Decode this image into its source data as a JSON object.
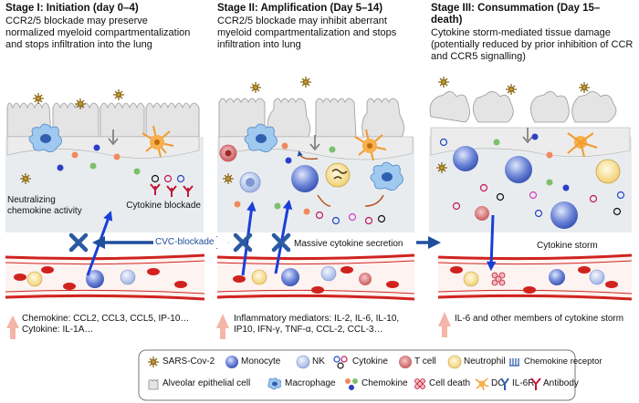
{
  "stages": [
    {
      "title": "Stage I: Initiation (day 0–4)",
      "description": "CCR2/5 blockade may preserve normalized myeloid compartmentalization and stops infiltration into the lung",
      "labels": [
        "Neutralizing chemokine activity",
        "Cytokine blockade"
      ],
      "mediators": "Chemokine: CCL2, CCL3, CCL5, IP-10… Cytokine: IL-1A…"
    },
    {
      "title": "Stage II: Amplification (Day 5–14)",
      "description": "CCR2/5 blockade may inhibit aberrant myeloid compartmentalization and stops infiltration into lung",
      "labels": [
        "Massive cytokine secretion"
      ],
      "mediators": "Inflammatory mediators: IL-2, IL-6, IL-10, IP10, IFN-γ, TNF-α, CCL-2, CCL-3…"
    },
    {
      "title": "Stage III: Consummation (Day 15– death)",
      "description": "Cytokine storm-mediated tissue damage (potentially reduced by prior inhibition of CCR and CCR5 signalling)",
      "labels": [
        "Cytokine storm"
      ],
      "mediators": "IL-6 and other members of cytokine storm"
    }
  ],
  "cvc_label": "CVC-blockade",
  "legend": [
    {
      "icon": "sars-cov-2-icon",
      "label": "SARS-Cov-2"
    },
    {
      "icon": "monocyte-icon",
      "label": "Monocyte"
    },
    {
      "icon": "nk-icon",
      "label": "NK"
    },
    {
      "icon": "cytokine-icon",
      "label": "Cytokine"
    },
    {
      "icon": "t-cell-icon",
      "label": "T cell"
    },
    {
      "icon": "neutrophil-icon",
      "label": "Neutrophil"
    },
    {
      "icon": "chemokine-receptor-icon",
      "label": "Chemokine receptor"
    },
    {
      "icon": "alveolar-epithelial-cell-icon",
      "label": "Alveolar epithelial cell"
    },
    {
      "icon": "macrophage-icon",
      "label": "Macrophage"
    },
    {
      "icon": "chemokine-icon",
      "label": "Chemokine"
    },
    {
      "icon": "cell-death-icon",
      "label": "Cell death"
    },
    {
      "icon": "dc-icon",
      "label": "DC"
    },
    {
      "icon": "il-6r-icon",
      "label": "IL-6R"
    },
    {
      "icon": "antibody-icon",
      "label": "Antibody"
    }
  ],
  "colors": {
    "arrow_blue": "#1f4e9c",
    "block_x": "#2a5aa0",
    "up_arrow": "#f4b6a8",
    "vessel_red": "#d0231f",
    "dc_orange": "#f39a2d"
  }
}
